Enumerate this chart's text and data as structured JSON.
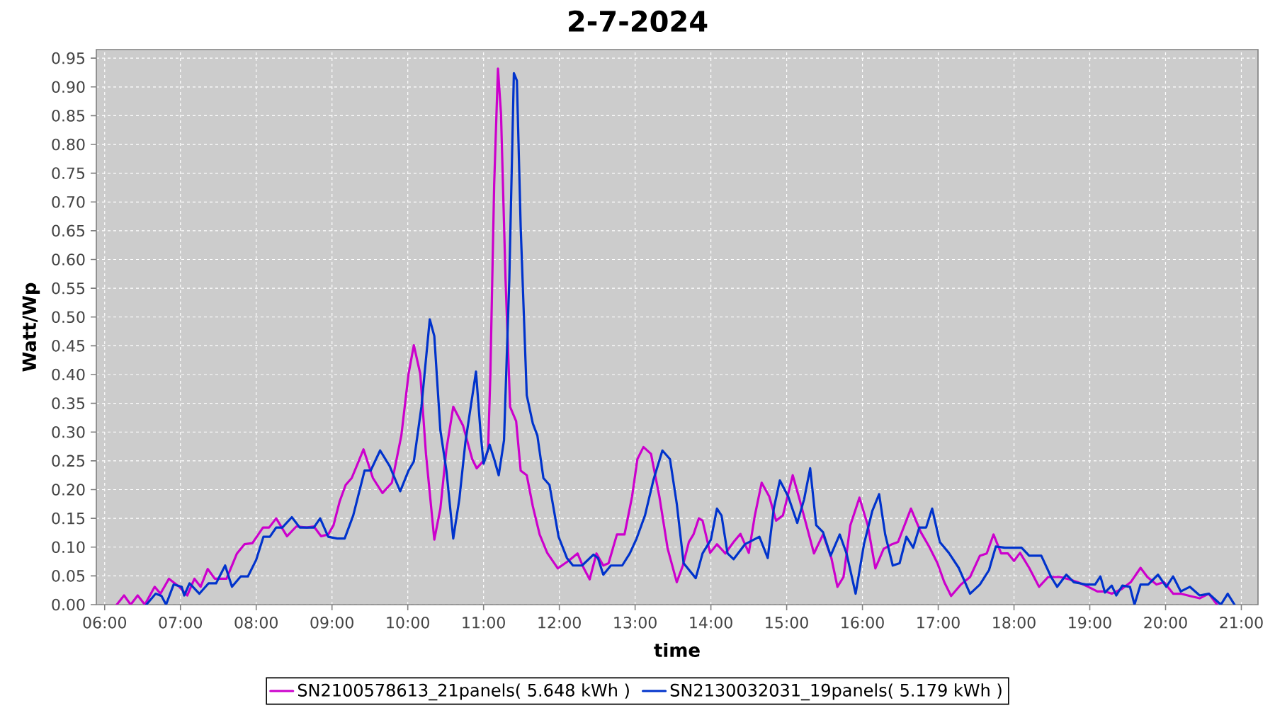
{
  "chart_data": {
    "type": "line",
    "title": "2-7-2024",
    "xlabel": "time",
    "ylabel": "Watt/Wp",
    "xlim": [
      5.89,
      21.22
    ],
    "ylim": [
      0,
      0.965
    ],
    "xticks": [
      {
        "value": 6,
        "label": "06:00"
      },
      {
        "value": 7,
        "label": "07:00"
      },
      {
        "value": 8,
        "label": "08:00"
      },
      {
        "value": 9,
        "label": "09:00"
      },
      {
        "value": 10,
        "label": "10:00"
      },
      {
        "value": 11,
        "label": "11:00"
      },
      {
        "value": 12,
        "label": "12:00"
      },
      {
        "value": 13,
        "label": "13:00"
      },
      {
        "value": 14,
        "label": "14:00"
      },
      {
        "value": 15,
        "label": "15:00"
      },
      {
        "value": 16,
        "label": "16:00"
      },
      {
        "value": 17,
        "label": "17:00"
      },
      {
        "value": 18,
        "label": "18:00"
      },
      {
        "value": 19,
        "label": "19:00"
      },
      {
        "value": 20,
        "label": "20:00"
      },
      {
        "value": 21,
        "label": "21:00"
      }
    ],
    "yticks": [
      {
        "value": 0,
        "label": "0.00"
      },
      {
        "value": 0.05,
        "label": "0.05"
      },
      {
        "value": 0.1,
        "label": "0.10"
      },
      {
        "value": 0.15,
        "label": "0.15"
      },
      {
        "value": 0.2,
        "label": "0.20"
      },
      {
        "value": 0.25,
        "label": "0.25"
      },
      {
        "value": 0.3,
        "label": "0.30"
      },
      {
        "value": 0.35,
        "label": "0.35"
      },
      {
        "value": 0.4,
        "label": "0.40"
      },
      {
        "value": 0.45,
        "label": "0.45"
      },
      {
        "value": 0.5,
        "label": "0.50"
      },
      {
        "value": 0.55,
        "label": "0.55"
      },
      {
        "value": 0.6,
        "label": "0.60"
      },
      {
        "value": 0.65,
        "label": "0.65"
      },
      {
        "value": 0.7,
        "label": "0.70"
      },
      {
        "value": 0.75,
        "label": "0.75"
      },
      {
        "value": 0.8,
        "label": "0.80"
      },
      {
        "value": 0.85,
        "label": "0.85"
      },
      {
        "value": 0.9,
        "label": "0.90"
      },
      {
        "value": 0.95,
        "label": "0.95"
      }
    ],
    "grid": true,
    "legend": "bottom",
    "series": [
      {
        "name": "SN2100578613_21panels( 5.648 kWh )",
        "color": "#cc00cc",
        "x": [
          6.16,
          6.256,
          6.343,
          6.436,
          6.53,
          6.66,
          6.736,
          6.848,
          6.985,
          7.09,
          7.185,
          7.266,
          7.36,
          7.453,
          7.608,
          7.746,
          7.845,
          7.95,
          8.089,
          8.17,
          8.263,
          8.406,
          8.53,
          8.668,
          8.76,
          8.855,
          8.95,
          9.02,
          9.1,
          9.18,
          9.26,
          9.416,
          9.54,
          9.666,
          9.79,
          9.915,
          10.01,
          10.08,
          10.165,
          10.24,
          10.35,
          10.43,
          10.51,
          10.6,
          10.73,
          10.85,
          10.91,
          11.02,
          11.06,
          11.09,
          11.14,
          11.19,
          11.23,
          11.29,
          11.35,
          11.43,
          11.49,
          11.57,
          11.65,
          11.74,
          11.84,
          11.98,
          12.12,
          12.24,
          12.32,
          12.4,
          12.49,
          12.58,
          12.65,
          12.76,
          12.86,
          12.96,
          13.03,
          13.11,
          13.21,
          13.32,
          13.43,
          13.55,
          13.63,
          13.71,
          13.77,
          13.84,
          13.89,
          13.99,
          14.08,
          14.19,
          14.3,
          14.39,
          14.5,
          14.58,
          14.67,
          14.77,
          14.86,
          14.95,
          15.08,
          15.17,
          15.36,
          15.48,
          15.59,
          15.67,
          15.75,
          15.84,
          15.96,
          16.07,
          16.17,
          16.28,
          16.39,
          16.47,
          16.64,
          16.77,
          16.88,
          16.99,
          17.08,
          17.17,
          17.3,
          17.42,
          17.55,
          17.64,
          17.73,
          17.83,
          17.92,
          18.0,
          18.08,
          18.2,
          18.33,
          18.45,
          18.61,
          18.73,
          18.86,
          18.98,
          19.1,
          19.2,
          19.29,
          19.42,
          19.54,
          19.67,
          19.76,
          19.88,
          19.98,
          20.1,
          20.2,
          20.32,
          20.45,
          20.57,
          20.68
        ],
        "values": [
          0,
          0.016,
          0,
          0.016,
          0,
          0.031,
          0.019,
          0.045,
          0.031,
          0.016,
          0.045,
          0.031,
          0.062,
          0.045,
          0.045,
          0.089,
          0.105,
          0.107,
          0.134,
          0.134,
          0.15,
          0.119,
          0.136,
          0.134,
          0.136,
          0.119,
          0.122,
          0.138,
          0.179,
          0.208,
          0.22,
          0.27,
          0.22,
          0.194,
          0.212,
          0.294,
          0.401,
          0.451,
          0.401,
          0.262,
          0.113,
          0.167,
          0.27,
          0.344,
          0.311,
          0.253,
          0.237,
          0.253,
          0.27,
          0.401,
          0.73,
          0.932,
          0.854,
          0.566,
          0.344,
          0.319,
          0.233,
          0.225,
          0.171,
          0.122,
          0.09,
          0.063,
          0.076,
          0.089,
          0.064,
          0.044,
          0.089,
          0.068,
          0.072,
          0.122,
          0.122,
          0.188,
          0.253,
          0.274,
          0.262,
          0.188,
          0.097,
          0.039,
          0.068,
          0.109,
          0.122,
          0.15,
          0.146,
          0.09,
          0.105,
          0.089,
          0.109,
          0.123,
          0.09,
          0.155,
          0.212,
          0.188,
          0.146,
          0.155,
          0.225,
          0.183,
          0.089,
          0.122,
          0.081,
          0.031,
          0.048,
          0.138,
          0.186,
          0.138,
          0.063,
          0.097,
          0.105,
          0.109,
          0.167,
          0.126,
          0.101,
          0.072,
          0.039,
          0.015,
          0.035,
          0.048,
          0.085,
          0.089,
          0.122,
          0.089,
          0.089,
          0.076,
          0.09,
          0.064,
          0.031,
          0.048,
          0.048,
          0.044,
          0.038,
          0.031,
          0.023,
          0.023,
          0.019,
          0.027,
          0.039,
          0.064,
          0.048,
          0.035,
          0.039,
          0.019,
          0.019,
          0.015,
          0.011,
          0.019,
          0
        ]
      },
      {
        "name": "SN2130032031_19panels( 5.179 kWh )",
        "color": "#0033cc",
        "x": [
          6.55,
          6.673,
          6.75,
          6.81,
          6.91,
          7.016,
          7.05,
          7.12,
          7.25,
          7.37,
          7.47,
          7.59,
          7.68,
          7.795,
          7.89,
          8.0,
          8.095,
          8.18,
          8.263,
          8.344,
          8.47,
          8.575,
          8.76,
          8.843,
          8.95,
          9.07,
          9.167,
          9.28,
          9.43,
          9.51,
          9.635,
          9.76,
          9.9,
          10.01,
          10.08,
          10.18,
          10.29,
          10.35,
          10.43,
          10.51,
          10.6,
          10.68,
          10.76,
          10.9,
          10.96,
          11.0,
          11.08,
          11.14,
          11.2,
          11.27,
          11.34,
          11.4,
          11.44,
          11.49,
          11.57,
          11.65,
          11.71,
          11.79,
          11.87,
          11.99,
          12.1,
          12.18,
          12.3,
          12.45,
          12.51,
          12.58,
          12.68,
          12.83,
          12.93,
          13.02,
          13.13,
          13.24,
          13.36,
          13.46,
          13.55,
          13.64,
          13.8,
          13.89,
          14.0,
          14.08,
          14.14,
          14.22,
          14.3,
          14.45,
          14.64,
          14.75,
          14.83,
          14.91,
          15.02,
          15.14,
          15.23,
          15.31,
          15.39,
          15.48,
          15.58,
          15.7,
          15.79,
          15.91,
          16.02,
          16.13,
          16.22,
          16.3,
          16.4,
          16.49,
          16.58,
          16.67,
          16.75,
          16.84,
          16.92,
          17.02,
          17.14,
          17.27,
          17.42,
          17.55,
          17.67,
          17.76,
          17.88,
          18.1,
          18.2,
          18.36,
          18.49,
          18.57,
          18.69,
          18.79,
          18.95,
          19.07,
          19.14,
          19.2,
          19.29,
          19.35,
          19.43,
          19.53,
          19.59,
          19.67,
          19.77,
          19.9,
          20.01,
          20.1,
          20.2,
          20.32,
          20.45,
          20.57,
          20.73,
          20.82,
          20.91
        ],
        "values": [
          0,
          0.019,
          0.015,
          0,
          0.035,
          0.031,
          0.016,
          0.037,
          0.019,
          0.037,
          0.037,
          0.068,
          0.031,
          0.049,
          0.049,
          0.078,
          0.118,
          0.118,
          0.134,
          0.134,
          0.152,
          0.134,
          0.134,
          0.15,
          0.118,
          0.115,
          0.115,
          0.155,
          0.233,
          0.233,
          0.268,
          0.241,
          0.197,
          0.233,
          0.249,
          0.344,
          0.496,
          0.467,
          0.303,
          0.233,
          0.115,
          0.183,
          0.282,
          0.405,
          0.3,
          0.245,
          0.278,
          0.253,
          0.225,
          0.286,
          0.566,
          0.924,
          0.911,
          0.656,
          0.364,
          0.315,
          0.294,
          0.22,
          0.208,
          0.118,
          0.081,
          0.068,
          0.068,
          0.087,
          0.081,
          0.052,
          0.068,
          0.068,
          0.089,
          0.115,
          0.155,
          0.216,
          0.268,
          0.253,
          0.175,
          0.072,
          0.046,
          0.089,
          0.113,
          0.167,
          0.155,
          0.089,
          0.079,
          0.105,
          0.118,
          0.081,
          0.167,
          0.216,
          0.188,
          0.142,
          0.183,
          0.237,
          0.138,
          0.126,
          0.085,
          0.122,
          0.089,
          0.019,
          0.105,
          0.163,
          0.192,
          0.122,
          0.068,
          0.072,
          0.118,
          0.099,
          0.134,
          0.134,
          0.167,
          0.109,
          0.09,
          0.064,
          0.019,
          0.035,
          0.06,
          0.101,
          0.099,
          0.099,
          0.085,
          0.085,
          0.048,
          0.031,
          0.052,
          0.039,
          0.035,
          0.035,
          0.049,
          0.021,
          0.033,
          0.016,
          0.033,
          0.031,
          0,
          0.035,
          0.035,
          0.052,
          0.031,
          0.049,
          0.023,
          0.031,
          0.016,
          0.019,
          0,
          0.019,
          0
        ]
      }
    ]
  }
}
